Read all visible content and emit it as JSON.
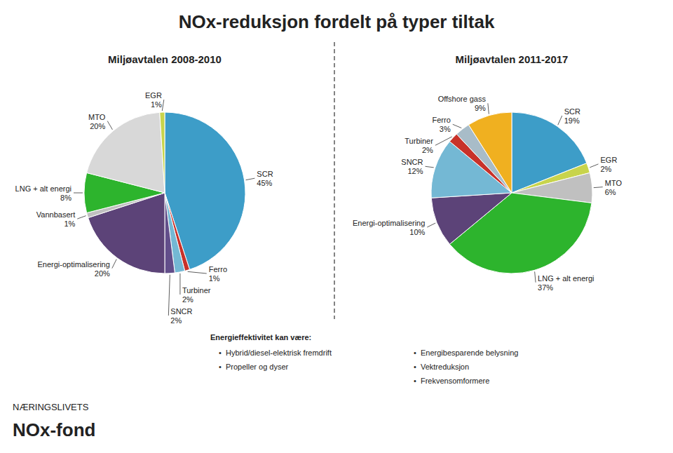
{
  "title": "NOx-reduksjon fordelt på typer tiltak",
  "chart_data": [
    {
      "type": "pie",
      "title": "Miljøavtalen 2008-2010",
      "categories": [
        "SCR",
        "Ferro",
        "Turbiner",
        "SNCR",
        "Energi-optimalisering",
        "Vannbasert",
        "LNG + alt energi",
        "MTO",
        "EGR"
      ],
      "values": [
        45,
        1,
        2,
        2,
        20,
        1,
        8,
        20,
        1
      ],
      "value_labels": [
        "45%",
        "1%",
        "2%",
        "2%",
        "20%",
        "1%",
        "8%",
        "20%",
        "1%"
      ],
      "colors": [
        "#3d9dc8",
        "#c8322a",
        "#74b8d4",
        "#624e8a",
        "#5c4378",
        "#c0c0c0",
        "#2db42d",
        "#d8d8d8",
        "#c8d44c"
      ]
    },
    {
      "type": "pie",
      "title": "Miljøavtalen 2011-2017",
      "categories": [
        "SCR",
        "EGR",
        "MTO",
        "LNG + alt energi",
        "Energi-optimalisering",
        "SNCR",
        "Turbiner",
        "Ferro",
        "Offshore gass"
      ],
      "values": [
        19,
        2,
        6,
        37,
        10,
        12,
        2,
        3,
        9
      ],
      "value_labels": [
        "19%",
        "2%",
        "6%",
        "37%",
        "10%",
        "12%",
        "2%",
        "3%",
        "9%"
      ],
      "colors": [
        "#3d9dc8",
        "#c8d44c",
        "#c0c0c0",
        "#2db42d",
        "#5c4378",
        "#74b8d4",
        "#c8322a",
        "#a8bcc8",
        "#f0b020"
      ]
    }
  ],
  "annotations": [
    "Energieffektivitet kan være:",
    "•  Hybrid/diesel-elektrisk fremdrift",
    "•  Propeller og dyser",
    "•  Energibesparende belysning",
    "•  Vektreduksjon",
    "•  Frekvensomformere",
    "NÆRINGSLIVETS",
    "NOx-fond"
  ]
}
